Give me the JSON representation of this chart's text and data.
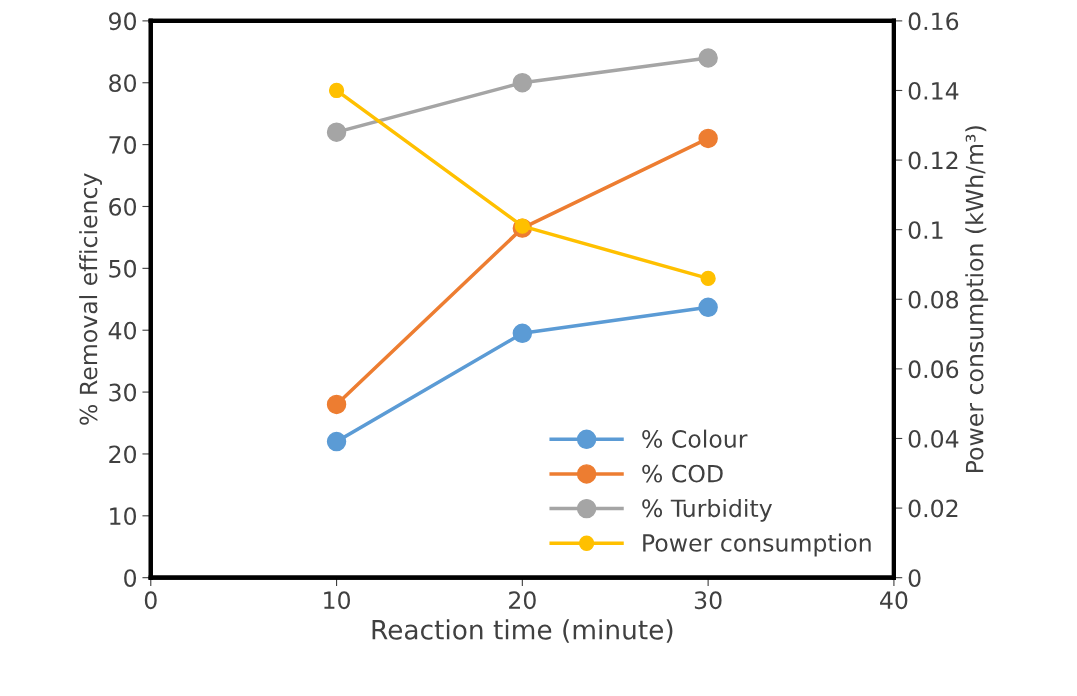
{
  "chart_data": {
    "type": "line",
    "xlabel": "Reaction time (minute)",
    "ylabel": "% Removal efficiency",
    "y2label": "Power consumption (kWh/m³)",
    "x": [
      10,
      20,
      30
    ],
    "series": [
      {
        "name": "% Colour",
        "color": "#5b9bd5",
        "values": [
          22,
          39.5,
          43.7
        ]
      },
      {
        "name": "% COD",
        "color": "#ed7d31",
        "values": [
          28,
          56.5,
          71
        ]
      },
      {
        "name": "% Turbidity",
        "color": "#a5a5a5",
        "values": [
          72,
          80,
          84
        ]
      },
      {
        "name": "Power consumption",
        "color": "#ffc000",
        "values": [
          0.14,
          0.101,
          0.086
        ],
        "axis": "y2"
      }
    ],
    "xlim": [
      0,
      40
    ],
    "xticks": [
      0,
      10,
      20,
      30,
      40
    ],
    "ylim": [
      0,
      90
    ],
    "yticks": [
      0,
      10,
      20,
      30,
      40,
      50,
      60,
      70,
      80,
      90
    ],
    "y2lim": [
      0,
      0.16
    ],
    "y2ticks": [
      0,
      0.02,
      0.04,
      0.06,
      0.08,
      {
        "value": 0.1,
        "label": "0.1"
      },
      0.12,
      0.14,
      0.16
    ],
    "grid": false,
    "legend": "bottom right",
    "marker": "circle",
    "line_style": "solid"
  }
}
